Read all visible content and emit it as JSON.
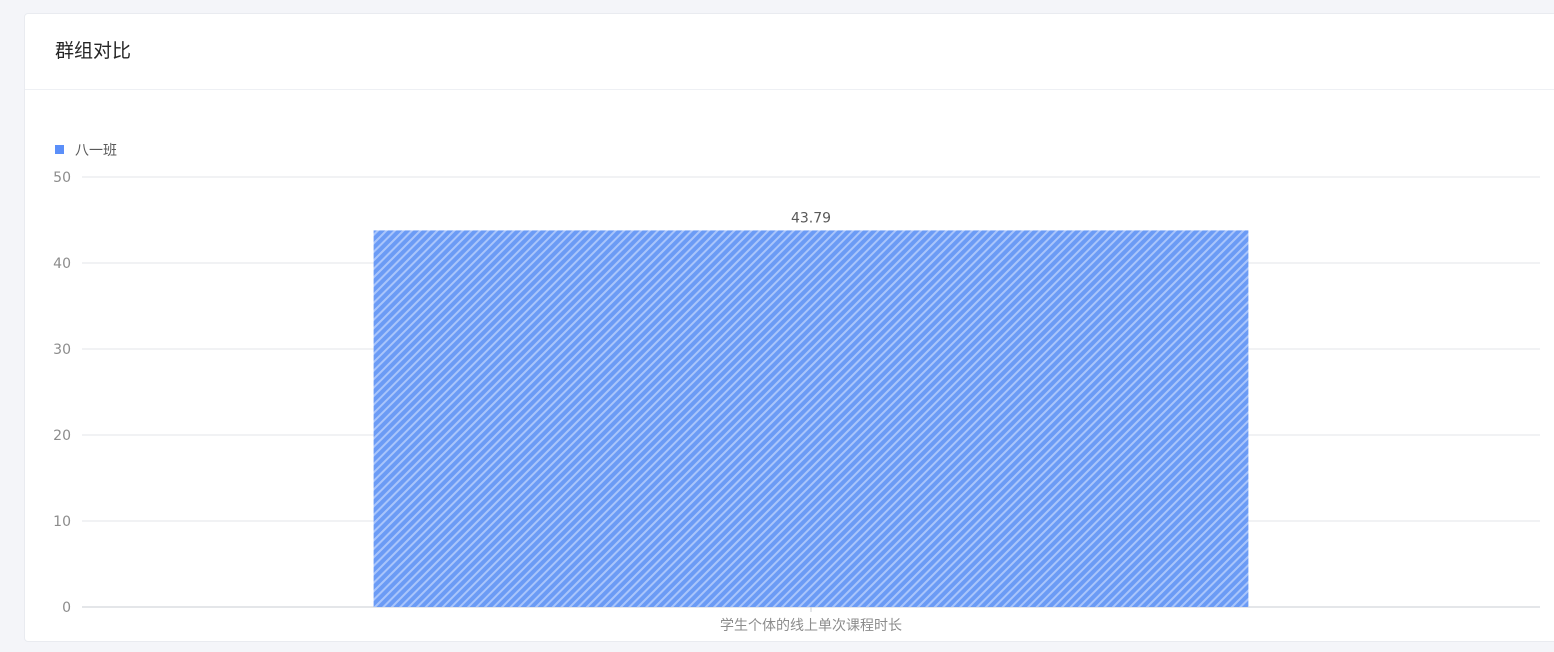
{
  "card": {
    "title": "群组对比"
  },
  "colors": {
    "bar": "#6b9bf5",
    "bar_stripe": "#a9c5fb",
    "legend": "#5b8ff9",
    "grid": "#e3e5ea",
    "axis": "#c8ccd3",
    "tick_text": "#8c8c8c",
    "label_text": "#595959"
  },
  "chart_data": {
    "type": "bar",
    "categories": [
      "学生个体的线上单次课程时长"
    ],
    "series": [
      {
        "name": "八一班",
        "values": [
          43.79
        ]
      }
    ],
    "data_labels": [
      "43.79"
    ],
    "ylim": [
      0,
      50
    ],
    "yticks": [
      "0",
      "10",
      "20",
      "30",
      "40",
      "50"
    ],
    "grid": true,
    "legend": "top-left"
  }
}
